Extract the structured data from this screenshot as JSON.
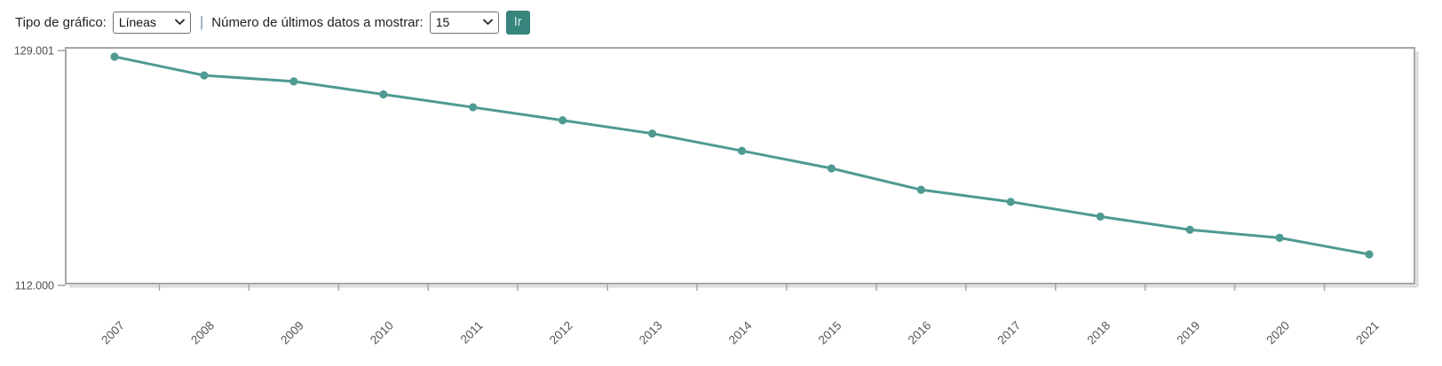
{
  "toolbar": {
    "chart_type_label": "Tipo de gráfico:",
    "chart_type_value": "Líneas",
    "separator": "|",
    "last_data_label": "Número de últimos datos a mostrar:",
    "last_data_value": "15",
    "go_button": "Ir"
  },
  "colors": {
    "series_teal": "#4f9a92",
    "button_bg": "#37857c",
    "button_text": "#cde6e0",
    "separator_blue": "#8096aa",
    "axis_gray": "#a6a6a6",
    "axis_shadow": "#dadada",
    "y_label_gray": "#4d4d4d",
    "x_label_gray": "#555555"
  },
  "chart_data": {
    "type": "line",
    "categories": [
      "2007",
      "2008",
      "2009",
      "2010",
      "2011",
      "2012",
      "2013",
      "2014",
      "2015",
      "2016",
      "2017",
      "2018",
      "2019",
      "2020",
      "2021"
    ],
    "values": [
      128554,
      127200,
      126766,
      125826,
      124892,
      123948,
      122990,
      121739,
      120468,
      118919,
      118048,
      116979,
      116027,
      115439,
      114244
    ],
    "title": "",
    "xlabel": "",
    "ylabel": "",
    "ylim": [
      112000,
      129001
    ],
    "y_axis_labels": [
      "129.001",
      "112.000"
    ],
    "grid": false,
    "legend": false,
    "marker": "circle",
    "series_color": "#4f9a92"
  }
}
